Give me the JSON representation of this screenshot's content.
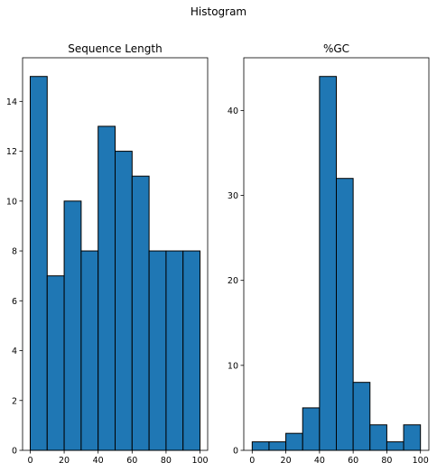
{
  "figure_title": "Histogram",
  "chart_data": [
    {
      "type": "bar",
      "title": "Sequence Length",
      "xlabel": "",
      "ylabel": "",
      "bin_edges": [
        0,
        10,
        20,
        30,
        40,
        50,
        60,
        70,
        80,
        90,
        100
      ],
      "values": [
        15,
        7,
        10,
        8,
        13,
        12,
        11,
        8,
        8,
        8
      ],
      "xlim": [
        -4.5,
        104.5
      ],
      "ylim": [
        0,
        15.75
      ],
      "xticks": [
        0,
        20,
        40,
        60,
        80,
        100
      ],
      "yticks": [
        0,
        2,
        4,
        6,
        8,
        10,
        12,
        14
      ],
      "bar_color": "#1f77b4",
      "edge_color": "#000000",
      "grid": false
    },
    {
      "type": "bar",
      "title": "%GC",
      "xlabel": "",
      "ylabel": "",
      "bin_edges": [
        0,
        10,
        20,
        30,
        40,
        50,
        60,
        70,
        80,
        90,
        100
      ],
      "values": [
        1,
        1,
        2,
        5,
        44,
        32,
        8,
        3,
        1,
        3
      ],
      "xlim": [
        -5,
        105
      ],
      "ylim": [
        0,
        46.2
      ],
      "xticks": [
        0,
        20,
        40,
        60,
        80,
        100
      ],
      "yticks": [
        0,
        10,
        20,
        30,
        40
      ],
      "bar_color": "#1f77b4",
      "edge_color": "#000000",
      "grid": false
    }
  ]
}
